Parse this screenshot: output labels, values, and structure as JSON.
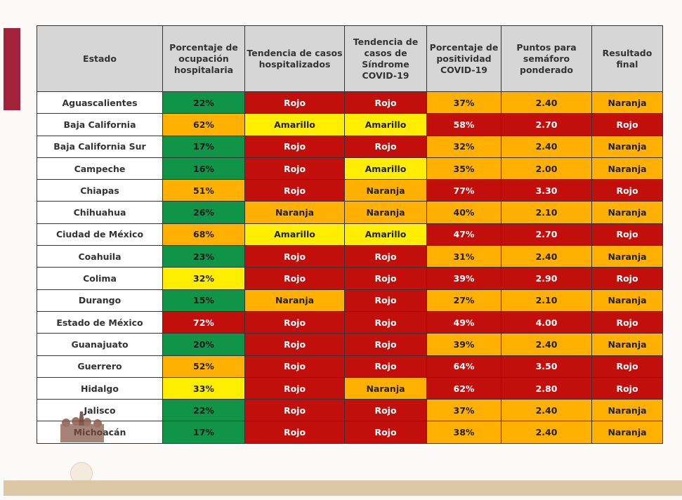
{
  "colors": {
    "verde": "#0f9448",
    "rojo": "#c20f0c",
    "naranja": "#ffb000",
    "amarillo": "#ffee00",
    "accent": "#a2223c"
  },
  "headers": [
    "Estado",
    "Porcentaje de ocupación hospitalaria",
    "Tendencia de casos hospitalizados",
    "Tendencia de casos de Síndrome COVID-19",
    "Porcentaje de positividad COVID-19",
    "Puntos para semáforo ponderado",
    "Resultado final"
  ],
  "rows": [
    {
      "cells": [
        "Aguascalientes",
        "22%",
        "Rojo",
        "Rojo",
        "37%",
        "2.40",
        "Naranja"
      ],
      "colors": [
        "e",
        "g",
        "r",
        "r",
        "o",
        "o",
        "o"
      ]
    },
    {
      "cells": [
        "Baja California",
        "62%",
        "Amarillo",
        "Amarillo",
        "58%",
        "2.70",
        "Rojo"
      ],
      "colors": [
        "e",
        "o",
        "y",
        "y",
        "r",
        "r",
        "r"
      ]
    },
    {
      "cells": [
        "Baja California Sur",
        "17%",
        "Rojo",
        "Rojo",
        "32%",
        "2.40",
        "Naranja"
      ],
      "colors": [
        "e",
        "g",
        "r",
        "r",
        "o",
        "o",
        "o"
      ]
    },
    {
      "cells": [
        "Campeche",
        "16%",
        "Rojo",
        "Amarillo",
        "35%",
        "2.00",
        "Naranja"
      ],
      "colors": [
        "e",
        "g",
        "r",
        "y",
        "o",
        "o",
        "o"
      ]
    },
    {
      "cells": [
        "Chiapas",
        "51%",
        "Rojo",
        "Naranja",
        "77%",
        "3.30",
        "Rojo"
      ],
      "colors": [
        "e",
        "o",
        "r",
        "o",
        "r",
        "r",
        "r"
      ]
    },
    {
      "cells": [
        "Chihuahua",
        "26%",
        "Naranja",
        "Naranja",
        "40%",
        "2.10",
        "Naranja"
      ],
      "colors": [
        "e",
        "g",
        "o",
        "o",
        "o",
        "o",
        "o"
      ]
    },
    {
      "cells": [
        "Ciudad de México",
        "68%",
        "Amarillo",
        "Amarillo",
        "47%",
        "2.70",
        "Rojo"
      ],
      "colors": [
        "e",
        "o",
        "y",
        "y",
        "r",
        "r",
        "r"
      ]
    },
    {
      "cells": [
        "Coahuila",
        "23%",
        "Rojo",
        "Rojo",
        "31%",
        "2.40",
        "Naranja"
      ],
      "colors": [
        "e",
        "g",
        "r",
        "r",
        "o",
        "o",
        "o"
      ]
    },
    {
      "cells": [
        "Colima",
        "32%",
        "Rojo",
        "Rojo",
        "39%",
        "2.90",
        "Rojo"
      ],
      "colors": [
        "e",
        "y",
        "r",
        "r",
        "r",
        "r",
        "r"
      ]
    },
    {
      "cells": [
        "Durango",
        "15%",
        "Naranja",
        "Rojo",
        "27%",
        "2.10",
        "Naranja"
      ],
      "colors": [
        "e",
        "g",
        "o",
        "r",
        "o",
        "o",
        "o"
      ]
    },
    {
      "cells": [
        "Estado de México",
        "72%",
        "Rojo",
        "Rojo",
        "49%",
        "4.00",
        "Rojo"
      ],
      "colors": [
        "e",
        "r",
        "r",
        "r",
        "r",
        "r",
        "r"
      ]
    },
    {
      "cells": [
        "Guanajuato",
        "20%",
        "Rojo",
        "Rojo",
        "39%",
        "2.40",
        "Naranja"
      ],
      "colors": [
        "e",
        "g",
        "r",
        "r",
        "o",
        "o",
        "o"
      ]
    },
    {
      "cells": [
        "Guerrero",
        "52%",
        "Rojo",
        "Rojo",
        "64%",
        "3.50",
        "Rojo"
      ],
      "colors": [
        "e",
        "o",
        "r",
        "r",
        "r",
        "r",
        "r"
      ]
    },
    {
      "cells": [
        "Hidalgo",
        "33%",
        "Rojo",
        "Naranja",
        "62%",
        "2.80",
        "Rojo"
      ],
      "colors": [
        "e",
        "y",
        "r",
        "o",
        "r",
        "r",
        "r"
      ]
    },
    {
      "cells": [
        "Jalisco",
        "22%",
        "Rojo",
        "Rojo",
        "37%",
        "2.40",
        "Naranja"
      ],
      "colors": [
        "e",
        "g",
        "r",
        "r",
        "o",
        "o",
        "o"
      ]
    },
    {
      "cells": [
        "Michoacán",
        "17%",
        "Rojo",
        "Rojo",
        "38%",
        "2.40",
        "Naranja"
      ],
      "colors": [
        "e",
        "g",
        "r",
        "r",
        "o",
        "o",
        "o"
      ]
    }
  ]
}
